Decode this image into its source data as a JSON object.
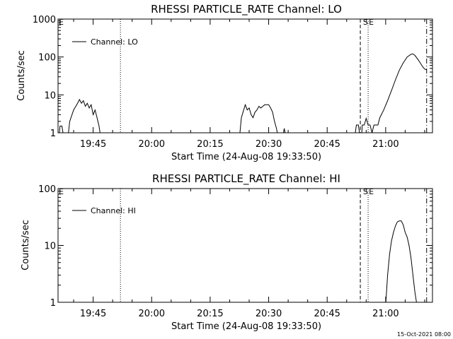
{
  "footer": {
    "timestamp": "15-Oct-2021 08:00"
  },
  "chart_data": [
    {
      "type": "line",
      "title": "RHESSI PARTICLE_RATE Channel: LO",
      "xlabel": "Start Time (24-Aug-08 19:33:50)",
      "ylabel": "Counts/sec",
      "yscale": "log",
      "ylim": [
        1,
        1000
      ],
      "y_ticks": [
        "1",
        "10",
        "100",
        "1000"
      ],
      "xlim": [
        "19:36",
        "21:12"
      ],
      "x_ticks": [
        "19:45",
        "20:00",
        "20:15",
        "20:30",
        "20:45",
        "21:00"
      ],
      "legend": {
        "position": "top-left",
        "entry": "Channel: LO"
      },
      "markers": [
        {
          "label": "E",
          "time": "19:36"
        },
        {
          "label": "S",
          "time": "20:54"
        },
        {
          "label": "E",
          "time": "20:55.5"
        }
      ],
      "vlines": [
        {
          "time": "19:52",
          "style": "dotted"
        },
        {
          "time": "20:53.5",
          "style": "dashed"
        },
        {
          "time": "20:55.5",
          "style": "dotted"
        },
        {
          "time": "21:10.5",
          "style": "dashdot"
        }
      ],
      "series": [
        {
          "name": "Channel: LO",
          "segments": [
            [
              [
                "19:36.2",
                0.7
              ],
              [
                "19:36.5",
                1.5
              ],
              [
                "19:37",
                1.5
              ],
              [
                "19:37.5",
                0.7
              ]
            ],
            [
              [
                "19:38.5",
                0.7
              ],
              [
                "19:39",
                2
              ],
              [
                "19:40",
                4
              ],
              [
                "19:41",
                6
              ],
              [
                "19:41.5",
                7.5
              ],
              [
                "19:42",
                6
              ],
              [
                "19:42.5",
                7
              ],
              [
                "19:43",
                5
              ],
              [
                "19:43.5",
                6
              ],
              [
                "19:44",
                4.5
              ],
              [
                "19:44.5",
                5.5
              ],
              [
                "19:45",
                3
              ],
              [
                "19:45.5",
                4
              ],
              [
                "19:46",
                2.5
              ],
              [
                "19:46.5",
                1.5
              ],
              [
                "19:47",
                0.7
              ]
            ],
            [
              [
                "20:22.5",
                0.7
              ],
              [
                "20:23",
                2.5
              ],
              [
                "20:24",
                5.5
              ],
              [
                "20:24.5",
                4
              ],
              [
                "20:25",
                4.5
              ],
              [
                "20:25.5",
                3
              ],
              [
                "20:26",
                2.5
              ],
              [
                "20:26.5",
                3.5
              ],
              [
                "20:27",
                4
              ],
              [
                "20:27.5",
                5
              ],
              [
                "20:28",
                4.5
              ],
              [
                "20:28.5",
                5
              ],
              [
                "20:29",
                5.5
              ],
              [
                "20:30",
                5.5
              ],
              [
                "20:30.5",
                4.5
              ],
              [
                "20:31",
                3.5
              ],
              [
                "20:31.5",
                2
              ],
              [
                "20:32",
                1.3
              ],
              [
                "20:32.5",
                0.7
              ]
            ],
            [
              [
                "20:33.5",
                0.7
              ],
              [
                "20:34",
                1.3
              ],
              [
                "20:34.5",
                0.7
              ]
            ],
            [
              [
                "20:52",
                0.7
              ],
              [
                "20:52.5",
                1.6
              ],
              [
                "20:53",
                1.6
              ],
              [
                "20:53.5",
                0.7
              ]
            ],
            [
              [
                "20:53.8",
                0.7
              ],
              [
                "20:54",
                1.6
              ],
              [
                "20:54.5",
                1.6
              ],
              [
                "20:55",
                2.4
              ],
              [
                "20:55.5",
                1.6
              ],
              [
                "20:56",
                1.6
              ],
              [
                "20:56.5",
                1
              ],
              [
                "20:57",
                1.6
              ],
              [
                "20:58",
                1.6
              ],
              [
                "20:58.5",
                2.5
              ],
              [
                "20:59.5",
                4
              ],
              [
                "21:00.5",
                7
              ],
              [
                "21:01.5",
                13
              ],
              [
                "21:02.5",
                25
              ],
              [
                "21:03.5",
                45
              ],
              [
                "21:04.5",
                70
              ],
              [
                "21:05.5",
                100
              ],
              [
                "21:06.5",
                118
              ],
              [
                "21:07",
                120
              ],
              [
                "21:07.5",
                110
              ],
              [
                "21:08.5",
                80
              ],
              [
                "21:09.5",
                55
              ],
              [
                "21:10",
                48
              ],
              [
                "21:10.5",
                46
              ]
            ]
          ]
        }
      ]
    },
    {
      "type": "line",
      "title": "RHESSI PARTICLE_RATE Channel: HI",
      "xlabel": "Start Time (24-Aug-08 19:33:50)",
      "ylabel": "Counts/sec",
      "yscale": "log",
      "ylim": [
        1,
        100
      ],
      "y_ticks": [
        "1",
        "10",
        "100"
      ],
      "xlim": [
        "19:36",
        "21:12"
      ],
      "x_ticks": [
        "19:45",
        "20:00",
        "20:15",
        "20:30",
        "20:45",
        "21:00"
      ],
      "legend": {
        "position": "top-left",
        "entry": "Channel: HI"
      },
      "markers": [
        {
          "label": "E",
          "time": "19:36"
        },
        {
          "label": "S",
          "time": "20:54"
        },
        {
          "label": "E",
          "time": "20:55.5"
        }
      ],
      "vlines": [
        {
          "time": "19:52",
          "style": "dotted"
        },
        {
          "time": "20:53.5",
          "style": "dashed"
        },
        {
          "time": "20:55.5",
          "style": "dotted"
        },
        {
          "time": "21:10.5",
          "style": "dashdot"
        }
      ],
      "series": [
        {
          "name": "Channel: HI",
          "segments": [
            [
              [
                "21:00",
                0.9
              ],
              [
                "21:00.5",
                3
              ],
              [
                "21:01",
                7
              ],
              [
                "21:01.5",
                12
              ],
              [
                "21:02",
                17
              ],
              [
                "21:02.5",
                22
              ],
              [
                "21:03",
                26
              ],
              [
                "21:03.5",
                27
              ],
              [
                "21:04",
                27
              ],
              [
                "21:04.5",
                23
              ],
              [
                "21:05",
                17
              ],
              [
                "21:05.5",
                14
              ],
              [
                "21:06",
                10
              ],
              [
                "21:06.5",
                6
              ],
              [
                "21:07",
                3
              ],
              [
                "21:07.5",
                1.5
              ],
              [
                "21:08",
                0.9
              ]
            ]
          ]
        }
      ]
    }
  ]
}
